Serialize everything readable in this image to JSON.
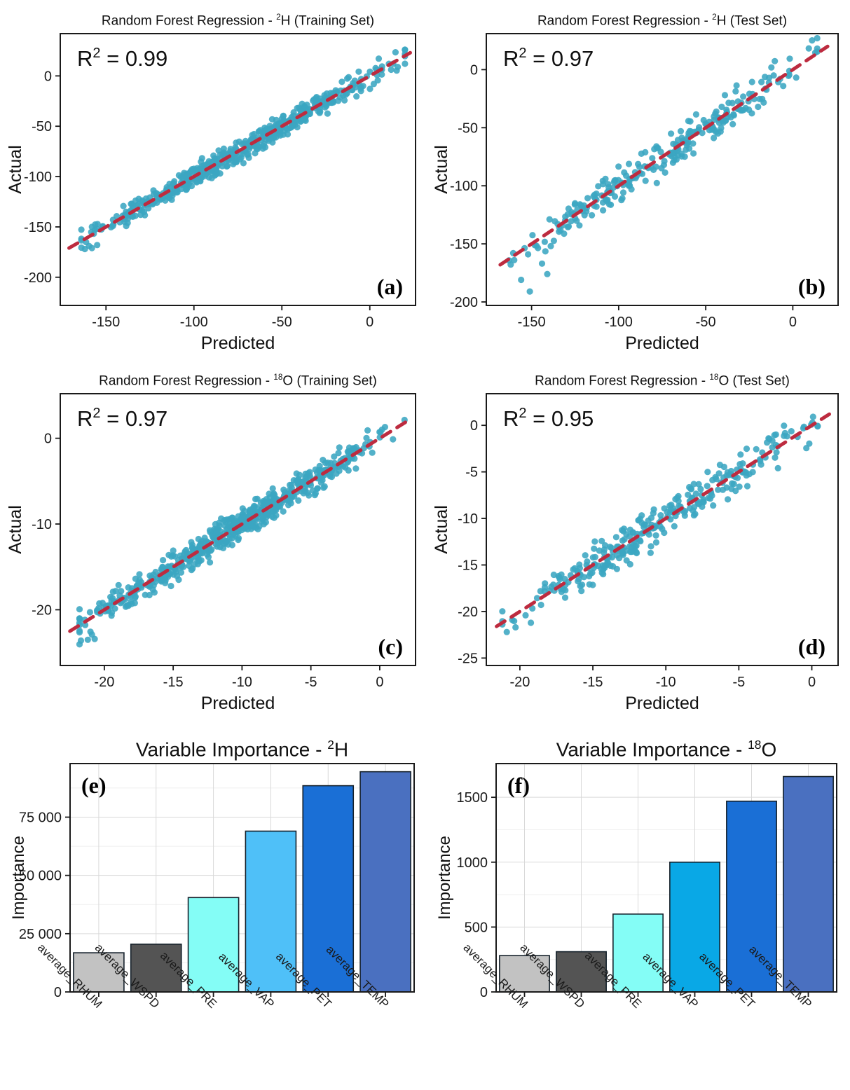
{
  "figure": {
    "description": "Random Forest regression scatter panels (a-d) and variable importance bar charts (e-f)",
    "point_color": "#3ba6c1",
    "line_color": "#bd2b3f",
    "panel_border_color": "#1a1a1a"
  },
  "chart_data": [
    {
      "id": "a",
      "type": "scatter",
      "title": "Random Forest Regression - ²H (Training Set)",
      "title_parts": {
        "pre": "Random Forest Regression - ",
        "sup": "2",
        "post": "H (Training Set)"
      },
      "r2_label": "R² = 0.99",
      "r2_value": "0.99",
      "panel_letter": "(a)",
      "xlabel": "Predicted",
      "ylabel": "Actual",
      "xlim": [
        -176,
        26
      ],
      "ylim": [
        -228,
        42
      ],
      "xticks": [
        -150,
        -100,
        -50,
        0
      ],
      "yticks": [
        0,
        -50,
        -100,
        -150,
        -200
      ],
      "identity_line": {
        "equation": "y = x",
        "style": "dashed",
        "color": "#bd2b3f",
        "span": [
          -171,
          23
        ]
      },
      "points_summary": {
        "n": 560,
        "x_mean": -72,
        "x_sd": 42,
        "x_min": -164,
        "x_max": 20,
        "residual_sd": 5.2,
        "seed": 11
      },
      "outliers": [
        [
          -162,
          -172
        ],
        [
          -158,
          -171
        ],
        [
          -155,
          -168
        ]
      ],
      "point_color": "#3ba6c1",
      "grid": false
    },
    {
      "id": "b",
      "type": "scatter",
      "title": "Random Forest Regression - ²H (Test Set)",
      "title_parts": {
        "pre": "Random Forest Regression - ",
        "sup": "2",
        "post": "H (Test Set)"
      },
      "r2_label": "R² = 0.97",
      "r2_value": "0.97",
      "panel_letter": "(b)",
      "xlabel": "Predicted",
      "ylabel": "Actual",
      "xlim": [
        -176,
        26
      ],
      "ylim": [
        -203,
        31
      ],
      "xticks": [
        -150,
        -100,
        -50,
        0
      ],
      "yticks": [
        0,
        -50,
        -100,
        -150,
        -200
      ],
      "identity_line": {
        "equation": "y = x",
        "style": "dashed",
        "color": "#bd2b3f",
        "span": [
          -168,
          20
        ]
      },
      "points_summary": {
        "n": 265,
        "x_mean": -72,
        "x_sd": 42,
        "x_min": -163,
        "x_max": 14,
        "residual_sd": 7.5,
        "seed": 23
      },
      "outliers": [
        [
          -151,
          -191
        ],
        [
          -141,
          -176
        ],
        [
          -144,
          -167
        ],
        [
          -156,
          -181
        ],
        [
          -152,
          -159
        ],
        [
          -160,
          -164
        ],
        [
          -139,
          -152
        ]
      ],
      "point_color": "#3ba6c1",
      "grid": false
    },
    {
      "id": "c",
      "type": "scatter",
      "title": "Random Forest Regression - ¹⁸O (Training Set)",
      "title_parts": {
        "pre": "Random Forest Regression - ",
        "sup": "18",
        "post": "O (Training Set)"
      },
      "r2_label": "R² = 0.97",
      "r2_value": "0.97",
      "panel_letter": "(c)",
      "xlabel": "Predicted",
      "ylabel": "Actual",
      "xlim": [
        -23.2,
        2.6
      ],
      "ylim": [
        -26.5,
        5.2
      ],
      "xticks": [
        -20,
        -15,
        -10,
        -5,
        0
      ],
      "yticks": [
        0,
        -10,
        -20
      ],
      "identity_line": {
        "equation": "y = x",
        "style": "dashed",
        "color": "#bd2b3f",
        "span": [
          -22.5,
          2.2
        ]
      },
      "points_summary": {
        "n": 620,
        "x_mean": -10.5,
        "x_sd": 5.2,
        "x_min": -21.8,
        "x_max": 1.8,
        "residual_sd": 0.85,
        "seed": 37
      },
      "outliers": [
        [
          -21.7,
          -23.6
        ],
        [
          -21.2,
          -23.5
        ],
        [
          -20.7,
          -23.4
        ],
        [
          -20.9,
          -22.9
        ]
      ],
      "point_color": "#3ba6c1",
      "grid": false
    },
    {
      "id": "d",
      "type": "scatter",
      "title": "Random Forest Regression - ¹⁸O (Test Set)",
      "title_parts": {
        "pre": "Random Forest Regression - ",
        "sup": "18",
        "post": "O (Test Set)"
      },
      "r2_label": "R² = 0.95",
      "r2_value": "0.95",
      "panel_letter": "(d)",
      "xlabel": "Predicted",
      "ylabel": "Actual",
      "xlim": [
        -22.3,
        1.8
      ],
      "ylim": [
        -25.8,
        3.4
      ],
      "xticks": [
        -20,
        -15,
        -10,
        -5,
        0
      ],
      "yticks": [
        0,
        -5,
        -10,
        -15,
        -20,
        -25
      ],
      "identity_line": {
        "equation": "y = x",
        "style": "dashed",
        "color": "#bd2b3f",
        "span": [
          -21.6,
          1.2
        ]
      },
      "points_summary": {
        "n": 300,
        "x_mean": -10.5,
        "x_sd": 5.0,
        "x_min": -21.2,
        "x_max": 0.4,
        "residual_sd": 0.95,
        "seed": 53
      },
      "outliers": [
        [
          -20.9,
          -22.2
        ],
        [
          -20.3,
          -21.7
        ]
      ],
      "point_color": "#3ba6c1",
      "grid": false
    },
    {
      "id": "e",
      "type": "bar",
      "title": "Variable Importance - ²H",
      "title_parts": {
        "pre": "Variable Importance - ",
        "sup": "2",
        "post": "H"
      },
      "panel_letter": "(e)",
      "ylabel": "Importance",
      "categories": [
        "average_RHUM",
        "average_WSPD",
        "average_PRE",
        "average_VAP",
        "average_PET",
        "average_TEMP"
      ],
      "values": [
        16800,
        20500,
        40500,
        69000,
        88500,
        94500
      ],
      "yticks": [
        0,
        25000,
        50000,
        75000
      ],
      "ytick_labels": [
        "0",
        "25 000",
        "50 000",
        "75 000"
      ],
      "minor_step": 12500,
      "ylim": [
        0,
        98000
      ],
      "bar_colors": [
        "#c2c2c2",
        "#545454",
        "#84fdf6",
        "#4fc0f8",
        "#1a6fd6",
        "#4a70c0"
      ],
      "bar_stroke": "#15212b",
      "grid": true,
      "legend": "none"
    },
    {
      "id": "f",
      "type": "bar",
      "title": "Variable Importance - ¹⁸O",
      "title_parts": {
        "pre": "Variable Importance - ",
        "sup": "18",
        "post": "O"
      },
      "panel_letter": "(f)",
      "ylabel": "Importance",
      "categories": [
        "average_RHUM",
        "average_WSPD",
        "average_PRE",
        "average_VAP",
        "average_PET",
        "average_TEMP"
      ],
      "values": [
        280,
        310,
        600,
        1000,
        1470,
        1660
      ],
      "yticks": [
        0,
        500,
        1000,
        1500
      ],
      "ytick_labels": [
        "0",
        "500",
        "1000",
        "1500"
      ],
      "minor_step": 250,
      "ylim": [
        0,
        1760
      ],
      "bar_colors": [
        "#c2c2c2",
        "#545454",
        "#84fdf6",
        "#09a8e6",
        "#1a6fd6",
        "#4a70c0"
      ],
      "bar_stroke": "#15212b",
      "grid": true,
      "legend": "none"
    }
  ]
}
